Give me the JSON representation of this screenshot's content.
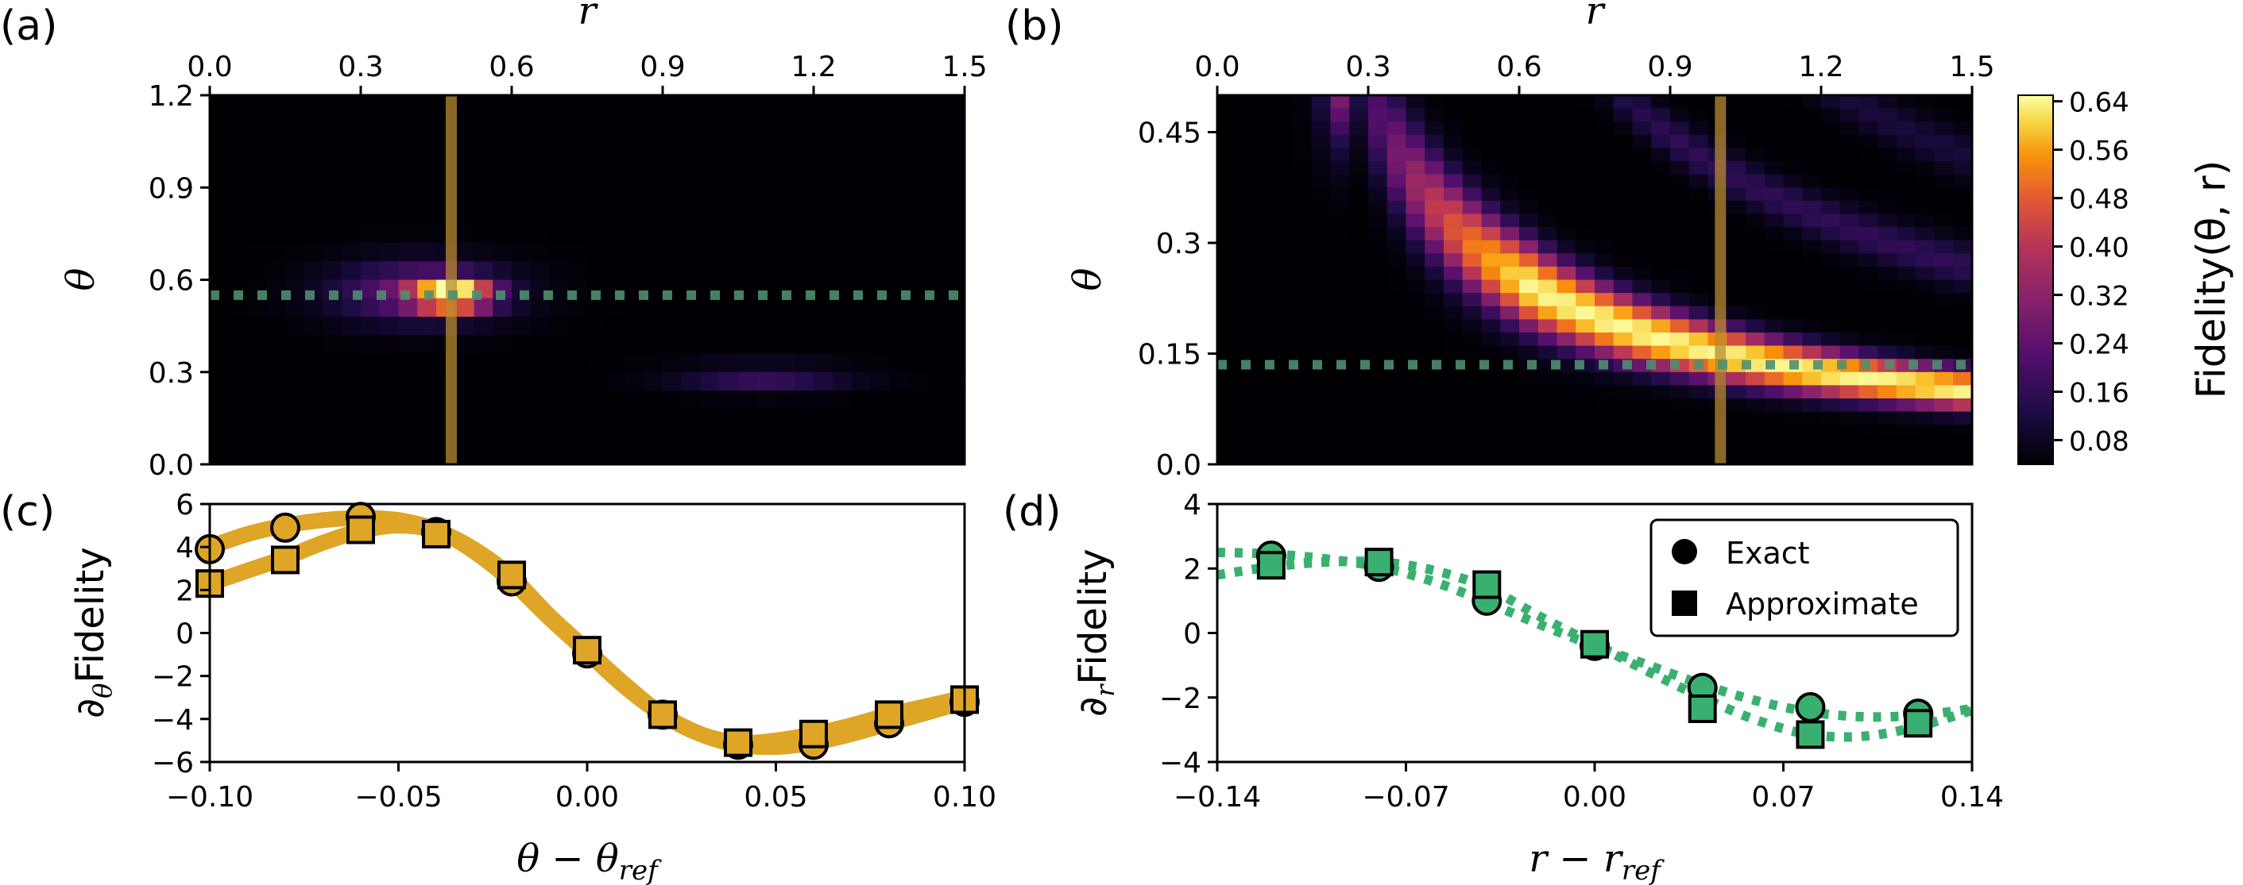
{
  "chart_data": [
    {
      "id": "a",
      "type": "heatmap",
      "panel_label": "(a)",
      "xlabel": "r",
      "ylabel": "θ",
      "x_axis_position": "top",
      "xlim": [
        0.0,
        1.5
      ],
      "ylim": [
        0.0,
        1.2
      ],
      "xticks": [
        "0.0",
        "0.3",
        "0.6",
        "0.9",
        "1.2",
        "1.5"
      ],
      "xtick_values": [
        0.0,
        0.3,
        0.6,
        0.9,
        1.2,
        1.5
      ],
      "yticks": [
        "0.0",
        "0.3",
        "0.6",
        "0.9",
        "1.2"
      ],
      "ytick_values": [
        0.0,
        0.3,
        0.6,
        0.9,
        1.2
      ],
      "grid": false,
      "colormap": "inferno",
      "peak": {
        "r": 0.48,
        "theta": 0.55,
        "fidelity": 0.64
      },
      "secondary_lobe": {
        "r": 1.1,
        "theta": 0.28,
        "fidelity": 0.12
      },
      "vline": {
        "r": 0.48,
        "color": "#b8892f"
      },
      "hline": {
        "theta": 0.55,
        "color": "#4f8f6f"
      }
    },
    {
      "id": "b",
      "type": "heatmap",
      "panel_label": "(b)",
      "xlabel": "r",
      "ylabel": "θ",
      "x_axis_position": "top",
      "xlim": [
        0.0,
        1.5
      ],
      "ylim": [
        0.0,
        0.5
      ],
      "xticks": [
        "0.0",
        "0.3",
        "0.6",
        "0.9",
        "1.2",
        "1.5"
      ],
      "xtick_values": [
        0.0,
        0.3,
        0.6,
        0.9,
        1.2,
        1.5
      ],
      "yticks": [
        "0.0",
        "0.15",
        "0.3",
        "0.45"
      ],
      "ytick_values": [
        0.0,
        0.15,
        0.3,
        0.45
      ],
      "grid": false,
      "colormap": "inferno",
      "ridge_curve": "theta ≈ 0.15 / r",
      "vline": {
        "r": 1.0,
        "color": "#b8892f"
      },
      "hline": {
        "theta": 0.135,
        "color": "#4f8f6f"
      },
      "colorbar": {
        "label": "Fidelity(θ, r)",
        "ticks": [
          "0.08",
          "0.16",
          "0.24",
          "0.32",
          "0.40",
          "0.48",
          "0.56",
          "0.64"
        ],
        "tick_values": [
          0.08,
          0.16,
          0.24,
          0.32,
          0.4,
          0.48,
          0.56,
          0.64
        ],
        "range": [
          0.04,
          0.65
        ]
      }
    },
    {
      "id": "c",
      "type": "line",
      "panel_label": "(c)",
      "xlabel_main": "θ − θ",
      "xlabel_sub": "ref",
      "ylabel_pre": "∂",
      "ylabel_sub": "θ",
      "ylabel_main": "Fidelity",
      "xlim": [
        -0.1,
        0.1
      ],
      "ylim": [
        -6,
        6
      ],
      "xticks": [
        "−0.10",
        "−0.05",
        "0.00",
        "0.05",
        "0.10"
      ],
      "xtick_values": [
        -0.1,
        -0.05,
        0.0,
        0.05,
        0.1
      ],
      "yticks": [
        "−6",
        "−4",
        "−2",
        "0",
        "2",
        "4",
        "6"
      ],
      "ytick_values": [
        -6,
        -4,
        -2,
        0,
        2,
        4,
        6
      ],
      "grid": false,
      "color": "#dea527",
      "line_style": "solid",
      "series": [
        {
          "name": "Exact",
          "curve_x": [
            -0.1,
            -0.09,
            -0.08,
            -0.07,
            -0.06,
            -0.05,
            -0.04,
            -0.03,
            -0.02,
            -0.01,
            0.0,
            0.01,
            0.02,
            0.03,
            0.04,
            0.05,
            0.06,
            0.07,
            0.08,
            0.09,
            0.1
          ],
          "curve_y": [
            4.0,
            4.6,
            5.0,
            5.25,
            5.35,
            5.25,
            4.8,
            3.8,
            2.4,
            0.7,
            -0.9,
            -2.5,
            -3.8,
            -4.7,
            -5.2,
            -5.3,
            -5.1,
            -4.7,
            -4.2,
            -3.7,
            -3.2
          ],
          "marker_x": [
            -0.1,
            -0.08,
            -0.06,
            -0.04,
            -0.02,
            0.0,
            0.02,
            0.04,
            0.06,
            0.08,
            0.1
          ],
          "marker_y": [
            3.9,
            4.9,
            5.4,
            4.7,
            2.4,
            -0.95,
            -3.8,
            -5.2,
            -5.2,
            -4.2,
            -3.2
          ],
          "marker": "circle"
        },
        {
          "name": "Approximate",
          "curve_x": [
            -0.1,
            -0.09,
            -0.08,
            -0.07,
            -0.06,
            -0.05,
            -0.04,
            -0.03,
            -0.02,
            -0.01,
            0.0,
            0.01,
            0.02,
            0.03,
            0.04,
            0.05,
            0.06,
            0.07,
            0.08,
            0.09,
            0.1
          ],
          "curve_y": [
            2.3,
            2.9,
            3.5,
            4.2,
            4.75,
            5.0,
            4.75,
            3.9,
            2.6,
            0.8,
            -0.8,
            -2.4,
            -3.8,
            -4.7,
            -5.1,
            -5.0,
            -4.7,
            -4.3,
            -3.8,
            -3.4,
            -3.0
          ],
          "marker_x": [
            -0.1,
            -0.08,
            -0.06,
            -0.04,
            -0.02,
            0.0,
            0.02,
            0.04,
            0.06,
            0.08,
            0.1
          ],
          "marker_y": [
            2.3,
            3.4,
            4.8,
            4.6,
            2.7,
            -0.8,
            -3.8,
            -5.1,
            -4.7,
            -3.8,
            -3.1
          ],
          "marker": "square"
        }
      ]
    },
    {
      "id": "d",
      "type": "line",
      "panel_label": "(d)",
      "xlabel_main": "r − r",
      "xlabel_sub": "ref",
      "ylabel_pre": "∂",
      "ylabel_sub": "r",
      "ylabel_main": "Fidelity",
      "xlim": [
        -0.14,
        0.14
      ],
      "ylim": [
        -4,
        4
      ],
      "xticks": [
        "−0.14",
        "−0.07",
        "0.00",
        "0.07",
        "0.14"
      ],
      "xtick_values": [
        -0.14,
        -0.07,
        0.0,
        0.07,
        0.14
      ],
      "yticks": [
        "−4",
        "−2",
        "0",
        "2",
        "4"
      ],
      "ytick_values": [
        -4,
        -2,
        0,
        2,
        4
      ],
      "grid": false,
      "color": "#3ab070",
      "line_style": "dotted",
      "legend": {
        "position": "upper right",
        "entries": [
          "Exact",
          "Approximate"
        ]
      },
      "series": [
        {
          "name": "Exact",
          "curve_x": [
            -0.14,
            -0.12,
            -0.1,
            -0.08,
            -0.06,
            -0.04,
            -0.02,
            0.0,
            0.02,
            0.04,
            0.06,
            0.08,
            0.1,
            0.12,
            0.14
          ],
          "curve_y": [
            2.5,
            2.45,
            2.3,
            2.05,
            1.6,
            0.95,
            0.25,
            -0.4,
            -1.0,
            -1.6,
            -2.1,
            -2.45,
            -2.6,
            -2.55,
            -2.35
          ],
          "marker_x": [
            -0.12,
            -0.08,
            -0.04,
            0.0,
            0.04,
            0.08,
            0.12
          ],
          "marker_y": [
            2.4,
            2.05,
            1.0,
            -0.4,
            -1.7,
            -2.3,
            -2.5
          ],
          "marker": "circle"
        },
        {
          "name": "Approximate",
          "curve_x": [
            -0.14,
            -0.12,
            -0.1,
            -0.08,
            -0.06,
            -0.04,
            -0.02,
            0.0,
            0.02,
            0.04,
            0.06,
            0.08,
            0.1,
            0.12,
            0.14
          ],
          "curve_y": [
            1.8,
            2.05,
            2.2,
            2.2,
            1.95,
            1.4,
            0.5,
            -0.35,
            -1.2,
            -2.0,
            -2.7,
            -3.15,
            -3.2,
            -2.9,
            -2.4
          ],
          "marker_x": [
            -0.12,
            -0.08,
            -0.04,
            0.0,
            0.04,
            0.08,
            0.12
          ],
          "marker_y": [
            2.1,
            2.2,
            1.5,
            -0.35,
            -2.35,
            -3.15,
            -2.8
          ],
          "marker": "square"
        }
      ]
    }
  ]
}
